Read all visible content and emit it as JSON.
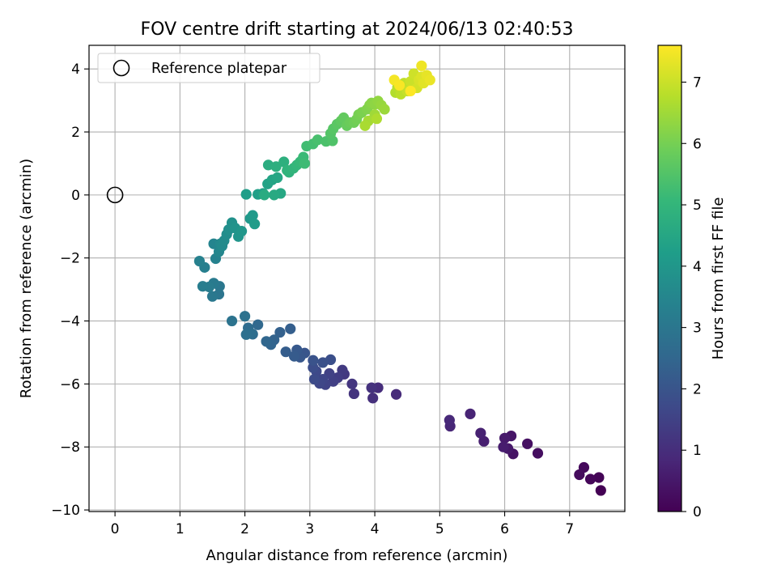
{
  "chart_data": {
    "type": "scatter",
    "title": "FOV centre drift starting at 2024/06/13 02:40:53",
    "xlabel": "Angular distance from reference (arcmin)",
    "ylabel": "Rotation from reference (arcmin)",
    "xlim": [
      -0.4,
      7.85
    ],
    "ylim": [
      -10.05,
      4.75
    ],
    "x_ticks": [
      0,
      1,
      2,
      3,
      4,
      5,
      6,
      7
    ],
    "y_ticks": [
      -10,
      -8,
      -6,
      -4,
      -2,
      0,
      2,
      4
    ],
    "grid": true,
    "legend": {
      "position": "upper-left",
      "label": "Reference platepar"
    },
    "reference_point": {
      "x": 0,
      "y": 0
    },
    "colorbar": {
      "label": "Hours from first FF file",
      "range": [
        0,
        7.6
      ],
      "ticks": [
        0,
        1,
        2,
        3,
        4,
        5,
        6,
        7
      ],
      "colormap": "viridis",
      "stops": [
        "#440154",
        "#482878",
        "#3e4989",
        "#31688e",
        "#26828e",
        "#1f9e89",
        "#35b779",
        "#6ece58",
        "#b5de2b",
        "#fde725"
      ]
    },
    "series": [
      {
        "name": "FOV centre",
        "points": [
          [
            7.48,
            -9.38
          ],
          [
            7.45,
            -8.97
          ],
          [
            7.32,
            -9.02
          ],
          [
            7.22,
            -8.65
          ],
          [
            7.15,
            -8.88
          ],
          [
            6.51,
            -8.2
          ],
          [
            6.35,
            -7.9
          ],
          [
            6.13,
            -8.22
          ],
          [
            6.1,
            -7.65
          ],
          [
            6.05,
            -8.05
          ],
          [
            6.0,
            -7.72
          ],
          [
            5.98,
            -8.0
          ],
          [
            5.68,
            -7.82
          ],
          [
            5.63,
            -7.56
          ],
          [
            5.47,
            -6.95
          ],
          [
            5.16,
            -7.34
          ],
          [
            5.15,
            -7.15
          ],
          [
            4.33,
            -6.33
          ],
          [
            4.05,
            -6.12
          ],
          [
            3.97,
            -6.45
          ],
          [
            3.95,
            -6.12
          ],
          [
            3.68,
            -6.31
          ],
          [
            3.65,
            -6.0
          ],
          [
            3.53,
            -5.69
          ],
          [
            3.5,
            -5.56
          ],
          [
            3.43,
            -5.8
          ],
          [
            3.36,
            -5.92
          ],
          [
            3.3,
            -5.67
          ],
          [
            3.24,
            -6.02
          ],
          [
            3.2,
            -5.85
          ],
          [
            3.15,
            -5.98
          ],
          [
            3.1,
            -5.6
          ],
          [
            3.07,
            -5.85
          ],
          [
            3.05,
            -5.48
          ],
          [
            3.32,
            -5.23
          ],
          [
            3.2,
            -5.32
          ],
          [
            3.05,
            -5.25
          ],
          [
            2.92,
            -5.02
          ],
          [
            2.85,
            -5.15
          ],
          [
            2.8,
            -4.92
          ],
          [
            2.76,
            -5.12
          ],
          [
            2.63,
            -4.98
          ],
          [
            2.7,
            -4.25
          ],
          [
            2.54,
            -4.36
          ],
          [
            2.45,
            -4.6
          ],
          [
            2.4,
            -4.75
          ],
          [
            2.33,
            -4.65
          ],
          [
            2.2,
            -4.12
          ],
          [
            2.12,
            -4.42
          ],
          [
            2.05,
            -4.22
          ],
          [
            2.1,
            -4.4
          ],
          [
            2.02,
            -4.43
          ],
          [
            2.0,
            -3.85
          ],
          [
            1.8,
            -4.0
          ],
          [
            1.6,
            -3.15
          ],
          [
            1.61,
            -2.9
          ],
          [
            1.5,
            -3.22
          ],
          [
            1.52,
            -2.8
          ],
          [
            1.45,
            -2.92
          ],
          [
            1.35,
            -2.9
          ],
          [
            1.38,
            -2.3
          ],
          [
            1.3,
            -2.1
          ],
          [
            1.55,
            -2.02
          ],
          [
            1.52,
            -1.55
          ],
          [
            1.6,
            -1.8
          ],
          [
            1.62,
            -1.55
          ],
          [
            1.65,
            -1.62
          ],
          [
            1.68,
            -1.45
          ],
          [
            1.72,
            -1.25
          ],
          [
            1.75,
            -1.1
          ],
          [
            1.8,
            -0.88
          ],
          [
            1.85,
            -1.05
          ],
          [
            1.9,
            -1.32
          ],
          [
            1.95,
            -1.15
          ],
          [
            2.08,
            -0.75
          ],
          [
            2.12,
            -0.65
          ],
          [
            2.15,
            -0.92
          ],
          [
            2.02,
            0.02
          ],
          [
            2.2,
            0.02
          ],
          [
            2.28,
            0.05
          ],
          [
            2.35,
            0.35
          ],
          [
            2.42,
            0.48
          ],
          [
            2.5,
            0.55
          ],
          [
            2.55,
            0.05
          ],
          [
            2.45,
            0.0
          ],
          [
            2.3,
            0.0
          ],
          [
            2.36,
            0.95
          ],
          [
            2.48,
            0.9
          ],
          [
            2.6,
            1.05
          ],
          [
            2.68,
            0.72
          ],
          [
            2.65,
            0.78
          ],
          [
            2.75,
            0.85
          ],
          [
            2.8,
            0.95
          ],
          [
            2.85,
            1.05
          ],
          [
            2.9,
            1.2
          ],
          [
            2.92,
            1.0
          ],
          [
            2.95,
            1.55
          ],
          [
            3.05,
            1.62
          ],
          [
            3.12,
            1.75
          ],
          [
            3.25,
            1.7
          ],
          [
            3.35,
            1.72
          ],
          [
            3.32,
            1.95
          ],
          [
            3.36,
            2.1
          ],
          [
            3.42,
            2.25
          ],
          [
            3.48,
            2.35
          ],
          [
            3.52,
            2.45
          ],
          [
            3.57,
            2.2
          ],
          [
            3.62,
            2.3
          ],
          [
            3.68,
            2.3
          ],
          [
            3.72,
            2.4
          ],
          [
            3.75,
            2.55
          ],
          [
            3.8,
            2.62
          ],
          [
            3.88,
            2.72
          ],
          [
            3.92,
            2.85
          ],
          [
            3.95,
            2.92
          ],
          [
            4.0,
            2.88
          ],
          [
            4.05,
            2.98
          ],
          [
            4.1,
            2.85
          ],
          [
            4.15,
            2.72
          ],
          [
            4.0,
            2.55
          ],
          [
            3.9,
            2.35
          ],
          [
            3.85,
            2.2
          ],
          [
            4.03,
            2.42
          ],
          [
            4.32,
            3.25
          ],
          [
            4.35,
            3.42
          ],
          [
            4.4,
            3.2
          ],
          [
            4.45,
            3.55
          ],
          [
            4.5,
            3.3
          ],
          [
            4.55,
            3.6
          ],
          [
            4.6,
            3.85
          ],
          [
            4.65,
            3.4
          ],
          [
            4.68,
            3.65
          ],
          [
            4.72,
            3.75
          ],
          [
            4.75,
            3.55
          ],
          [
            4.8,
            3.8
          ],
          [
            4.85,
            3.65
          ],
          [
            4.72,
            4.1
          ],
          [
            4.3,
            3.65
          ],
          [
            4.38,
            3.48
          ],
          [
            4.55,
            3.3
          ]
        ]
      }
    ]
  }
}
